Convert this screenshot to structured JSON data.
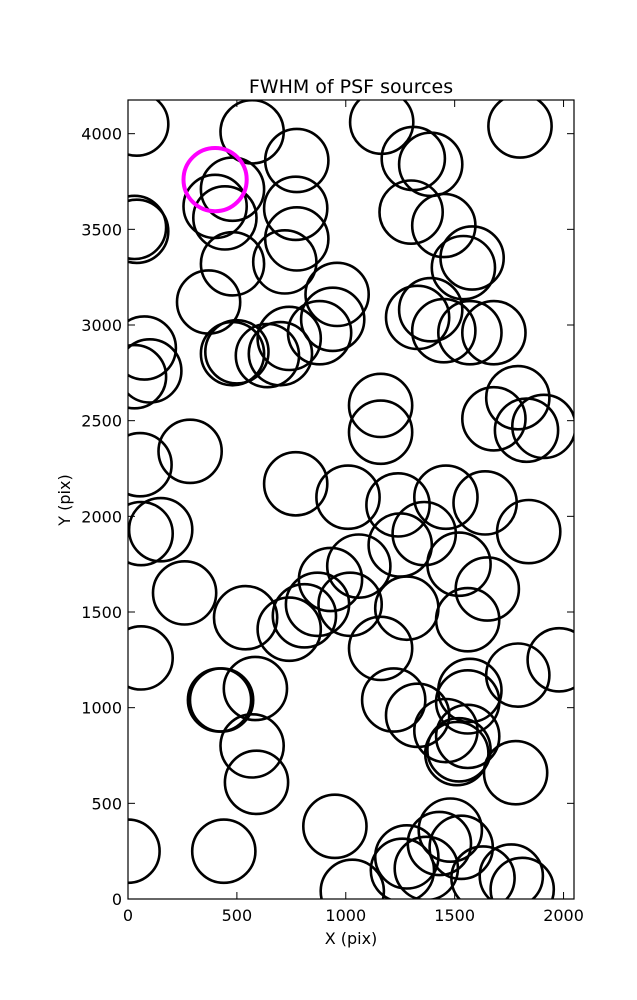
{
  "chart_data": {
    "type": "scatter",
    "title": "FWHM of PSF sources",
    "xlabel": "X (pix)",
    "ylabel": "Y (pix)",
    "xlim": [
      0,
      2048
    ],
    "ylim": [
      0,
      4176
    ],
    "xticks": [
      0,
      500,
      1000,
      1500,
      2000
    ],
    "yticks": [
      0,
      500,
      1000,
      1500,
      2000,
      2500,
      3000,
      3500,
      4000
    ],
    "grid": false,
    "marker": "open-circle",
    "marker_color": "#000000",
    "marker_radius_data_x": 145,
    "highlight_color": "#ff00ff",
    "series": [
      {
        "points": [
          [
            40,
            4050
          ],
          [
            570,
            4010
          ],
          [
            1165,
            4060
          ],
          [
            1800,
            4040
          ],
          [
            775,
            3860
          ],
          [
            1310,
            3870
          ],
          [
            1390,
            3840
          ],
          [
            480,
            3710
          ],
          [
            400,
            3620
          ],
          [
            445,
            3560
          ],
          [
            30,
            3510
          ],
          [
            40,
            3490
          ],
          [
            770,
            3610
          ],
          [
            1300,
            3590
          ],
          [
            1450,
            3520
          ],
          [
            720,
            3330
          ],
          [
            480,
            3320
          ],
          [
            775,
            3450
          ],
          [
            1580,
            3350
          ],
          [
            1540,
            3300
          ],
          [
            370,
            3120
          ],
          [
            960,
            3160
          ],
          [
            1390,
            3080
          ],
          [
            1330,
            3040
          ],
          [
            940,
            3030
          ],
          [
            1450,
            2970
          ],
          [
            1570,
            2960
          ],
          [
            1680,
            2960
          ],
          [
            880,
            2960
          ],
          [
            75,
            2880
          ],
          [
            100,
            2760
          ],
          [
            30,
            2730
          ],
          [
            480,
            2850
          ],
          [
            500,
            2860
          ],
          [
            640,
            2840
          ],
          [
            700,
            2850
          ],
          [
            740,
            2930
          ],
          [
            1790,
            2620
          ],
          [
            1680,
            2510
          ],
          [
            1830,
            2450
          ],
          [
            1910,
            2470
          ],
          [
            1160,
            2580
          ],
          [
            1160,
            2440
          ],
          [
            55,
            2270
          ],
          [
            285,
            2340
          ],
          [
            770,
            2170
          ],
          [
            1010,
            2100
          ],
          [
            1460,
            2100
          ],
          [
            1640,
            2070
          ],
          [
            1240,
            2060
          ],
          [
            60,
            1910
          ],
          [
            150,
            1930
          ],
          [
            1840,
            1920
          ],
          [
            1360,
            1910
          ],
          [
            1250,
            1850
          ],
          [
            1060,
            1740
          ],
          [
            930,
            1670
          ],
          [
            1520,
            1750
          ],
          [
            260,
            1600
          ],
          [
            1650,
            1620
          ],
          [
            870,
            1540
          ],
          [
            1020,
            1540
          ],
          [
            810,
            1480
          ],
          [
            740,
            1410
          ],
          [
            540,
            1470
          ],
          [
            1280,
            1520
          ],
          [
            1560,
            1460
          ],
          [
            1160,
            1310
          ],
          [
            60,
            1260
          ],
          [
            1790,
            1170
          ],
          [
            1980,
            1250
          ],
          [
            585,
            1100
          ],
          [
            430,
            1040
          ],
          [
            420,
            1040
          ],
          [
            1570,
            1090
          ],
          [
            1560,
            1030
          ],
          [
            1220,
            1040
          ],
          [
            1330,
            960
          ],
          [
            1460,
            880
          ],
          [
            1560,
            850
          ],
          [
            1520,
            780
          ],
          [
            1510,
            760
          ],
          [
            570,
            800
          ],
          [
            590,
            610
          ],
          [
            1780,
            660
          ],
          [
            950,
            380
          ],
          [
            440,
            250
          ],
          [
            0,
            250
          ],
          [
            1480,
            360
          ],
          [
            1430,
            290
          ],
          [
            1530,
            270
          ],
          [
            1280,
            220
          ],
          [
            1260,
            150
          ],
          [
            1370,
            160
          ],
          [
            1030,
            40
          ],
          [
            1630,
            110
          ],
          [
            1760,
            120
          ],
          [
            1810,
            50
          ]
        ]
      }
    ],
    "highlight": {
      "x": 400,
      "y": 3760
    }
  }
}
